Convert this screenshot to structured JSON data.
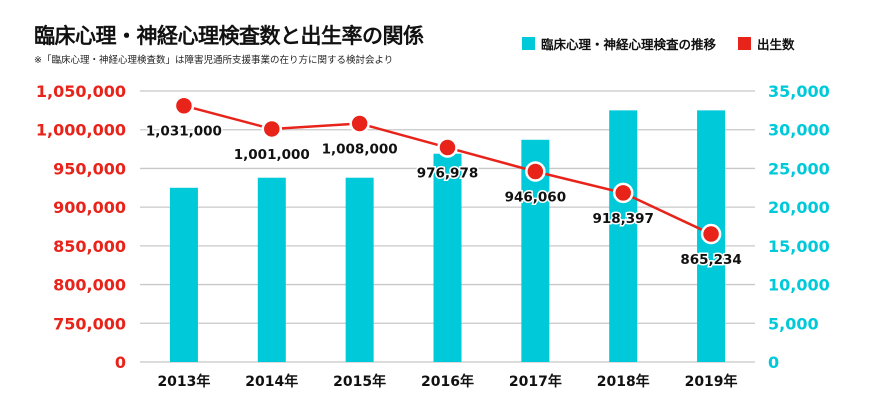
{
  "title": "臨床心理・神経心理検査数と出生率の関係",
  "note": "※「臨床心理・神経心理検査数」は障害児通所支援事業の在り方に関する検討会より",
  "colors": {
    "bar": "#00c9d9",
    "line": "#e8231a",
    "grid": "#c8c8c8"
  },
  "chart_data": {
    "type": "bar+line",
    "categories": [
      "2013年",
      "2014年",
      "2015年",
      "2016年",
      "2017年",
      "2018年",
      "2019年"
    ],
    "series": [
      {
        "name": "臨床心理・神経心理検査の推移",
        "type": "bar",
        "axis": "right",
        "values": [
          22500,
          23800,
          23800,
          26900,
          28700,
          32500,
          32500
        ]
      },
      {
        "name": "出生数",
        "type": "line",
        "axis": "left",
        "values": [
          1031000,
          1001000,
          1008000,
          976978,
          946060,
          918397,
          865234
        ],
        "labels": [
          "1,031,000",
          "1,001,000",
          "1,008,000",
          "976,978",
          "946,060",
          "918,397",
          "865,234"
        ]
      }
    ],
    "left_axis": {
      "ticks": [
        "0",
        "750,000",
        "800,000",
        "850,000",
        "900,000",
        "950,000",
        "1,000,000",
        "1,050,000"
      ],
      "tick_values": [
        0,
        750000,
        800000,
        850000,
        900000,
        950000,
        1000000,
        1050000
      ],
      "broken": true
    },
    "right_axis": {
      "ticks": [
        "0",
        "5,000",
        "10,000",
        "15,000",
        "20,000",
        "25,000",
        "30,000",
        "35,000"
      ],
      "ylim": [
        0,
        35000
      ]
    },
    "grid": true,
    "legend": "top-right"
  }
}
